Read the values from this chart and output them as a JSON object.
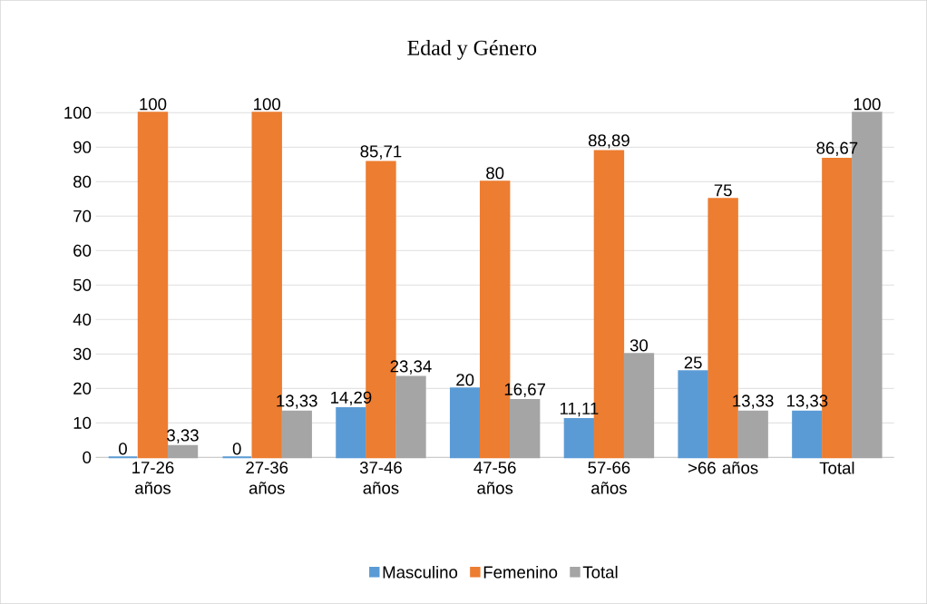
{
  "chart_data": {
    "type": "bar",
    "title": "Edad y Género",
    "categories": [
      "17-26 años",
      "27-36 años",
      "37-46 años",
      "47-56 años",
      "57-66 años",
      ">66 años",
      "Total"
    ],
    "series": [
      {
        "name": "Masculino",
        "color": "#5b9bd5",
        "values": [
          0,
          0,
          14.29,
          20,
          11.11,
          25,
          13.33
        ],
        "value_labels": [
          "0",
          "0",
          "14,29",
          "20",
          "11,11",
          "25",
          "13,33"
        ]
      },
      {
        "name": "Femenino",
        "color": "#ed7d31",
        "values": [
          100,
          100,
          85.71,
          80,
          88.89,
          75,
          86.67
        ],
        "value_labels": [
          "100",
          "100",
          "85,71",
          "80",
          "88,89",
          "75",
          "86,67"
        ]
      },
      {
        "name": "Total",
        "color": "#a5a5a5",
        "values": [
          3.33,
          13.33,
          23.34,
          16.67,
          30,
          13.33,
          100
        ],
        "value_labels": [
          "3,33",
          "13,33",
          "23,34",
          "16,67",
          "30",
          "13,33",
          "100"
        ]
      }
    ],
    "ylim": [
      0,
      100
    ],
    "yticks": [
      0,
      10,
      20,
      30,
      40,
      50,
      60,
      70,
      80,
      90,
      100
    ],
    "grid": "y",
    "legend": "bottom"
  }
}
